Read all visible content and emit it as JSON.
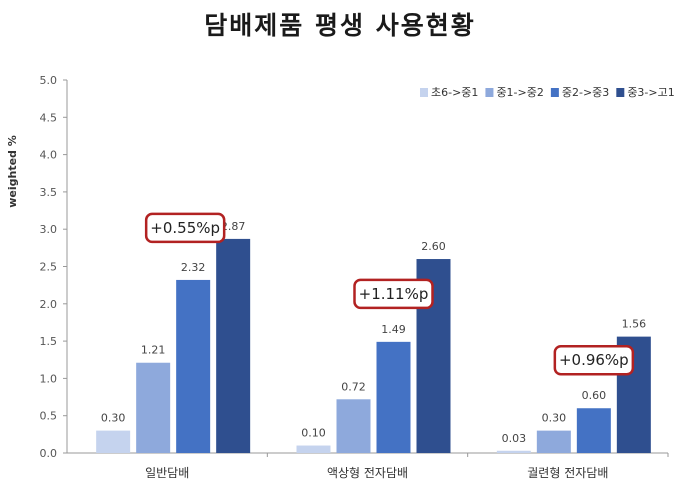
{
  "title": "담배제품 평생 사용현황",
  "chart_data": {
    "type": "bar",
    "title": "담배제품 평생 사용현황",
    "ylabel": "weighted %",
    "xlabel": "",
    "ylim": [
      0,
      5.0
    ],
    "yticks": [
      "0.0",
      "0.5",
      "1.0",
      "1.5",
      "2.0",
      "2.5",
      "3.0",
      "3.5",
      "4.0",
      "4.5",
      "5.0"
    ],
    "categories": [
      "일반담배",
      "액상형 전자담배",
      "궐련형 전자담배"
    ],
    "series": [
      {
        "name": "초6->중1",
        "values": [
          0.3,
          0.1,
          0.03
        ],
        "labels": [
          "0.30",
          "0.10",
          "0.03"
        ],
        "color": "#c5d3ee"
      },
      {
        "name": "중1->중2",
        "values": [
          1.21,
          0.72,
          0.3
        ],
        "labels": [
          "1.21",
          "0.72",
          "0.30"
        ],
        "color": "#8ea9dc"
      },
      {
        "name": "중2->중3",
        "values": [
          2.32,
          1.49,
          0.6
        ],
        "labels": [
          "2.32",
          "1.49",
          "0.60"
        ],
        "color": "#4472c4"
      },
      {
        "name": "중3->고1",
        "values": [
          2.87,
          2.6,
          1.56
        ],
        "labels": [
          "2.87",
          "2.60",
          "1.56"
        ],
        "color": "#2f4f8f"
      }
    ],
    "annotations": [
      "+0.55%p",
      "+1.11%p",
      "+0.96%p"
    ],
    "annotation_color": "#b22222",
    "grid": false,
    "legend_position": "top-right"
  }
}
